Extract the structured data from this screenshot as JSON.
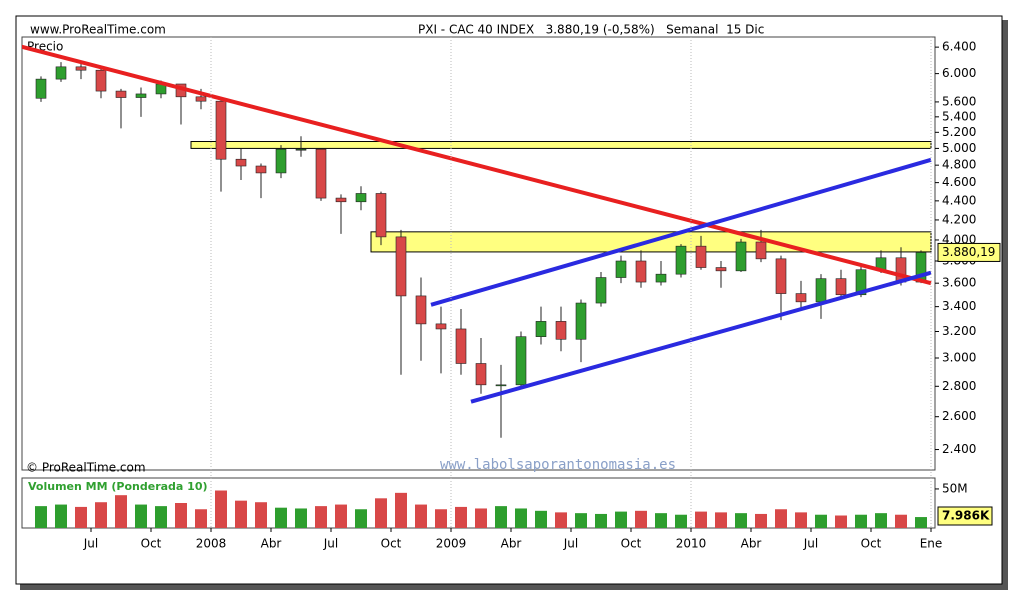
{
  "chart_data": {
    "type": "candlestick",
    "site": "www.ProRealTime.com",
    "title": "PXI - CAC 40 INDEX   3.880,19 (-0,58%)   Semanal  15 Dic",
    "price_label": "Precio",
    "copyright": "© ProRealTime.com",
    "watermark": "www.labolsaporantonomasia.es",
    "volume_title": "Volumen MM (Ponderada 10)",
    "x": [
      "2007-04",
      "2007-05",
      "2007-06",
      "2007-07",
      "2007-08",
      "2007-09",
      "2007-10",
      "2007-11",
      "2007-12",
      "2008-01",
      "2008-02",
      "2008-03",
      "2008-04",
      "2008-05",
      "2008-06",
      "2008-07",
      "2008-08",
      "2008-09",
      "2008-10",
      "2008-11",
      "2008-12",
      "2009-01",
      "2009-02",
      "2009-03",
      "2009-04",
      "2009-05",
      "2009-06",
      "2009-07",
      "2009-08",
      "2009-09",
      "2009-10",
      "2009-11",
      "2009-12",
      "2010-01",
      "2010-02",
      "2010-03",
      "2010-04",
      "2010-05",
      "2010-06",
      "2010-07",
      "2010-08",
      "2010-09",
      "2010-10",
      "2010-11",
      "2010-12"
    ],
    "open": [
      5650,
      5920,
      6100,
      6050,
      5750,
      5660,
      5710,
      5850,
      5670,
      5610,
      4870,
      4790,
      4710,
      4990,
      4990,
      4430,
      4390,
      4480,
      4030,
      3490,
      3260,
      3220,
      2960,
      2810,
      2810,
      3160,
      3280,
      3140,
      3430,
      3650,
      3800,
      3610,
      3680,
      3940,
      3740,
      3710,
      3980,
      3820,
      3510,
      3440,
      3640,
      3500,
      3720,
      3830,
      3610
    ],
    "high": [
      5960,
      6170,
      6160,
      6100,
      5780,
      5800,
      5900,
      5850,
      5780,
      5620,
      5000,
      4820,
      5040,
      5150,
      5000,
      4470,
      4560,
      4500,
      4100,
      3650,
      3400,
      3380,
      3150,
      2950,
      3200,
      3400,
      3400,
      3460,
      3700,
      3850,
      3900,
      3800,
      3960,
      4040,
      3800,
      4010,
      4100,
      3850,
      3620,
      3680,
      3720,
      3760,
      3900,
      3930,
      3900
    ],
    "low": [
      5600,
      5880,
      5920,
      5650,
      5250,
      5400,
      5650,
      5300,
      5500,
      4500,
      4630,
      4430,
      4650,
      4900,
      4400,
      4060,
      4300,
      3950,
      2880,
      2980,
      2890,
      2880,
      2750,
      2470,
      2800,
      3100,
      3050,
      2970,
      3400,
      3600,
      3560,
      3580,
      3650,
      3720,
      3560,
      3700,
      3790,
      3290,
      3390,
      3300,
      3460,
      3480,
      3690,
      3580,
      3600
    ],
    "close": [
      5920,
      6100,
      6050,
      5750,
      5660,
      5710,
      5850,
      5670,
      5610,
      4870,
      4790,
      4710,
      4990,
      4990,
      4430,
      4390,
      4480,
      4030,
      3490,
      3260,
      3220,
      2960,
      2810,
      2810,
      3160,
      3280,
      3140,
      3430,
      3650,
      3800,
      3610,
      3680,
      3940,
      3740,
      3710,
      3980,
      3820,
      3510,
      3440,
      3640,
      3500,
      3720,
      3830,
      3610,
      3880.19
    ],
    "last_close_label": "3.880,19",
    "up_color": "#2e9e2e",
    "down_color": "#d84848",
    "log_scale": true,
    "ylim": [
      2300,
      6560
    ],
    "yticks": [
      {
        "value": 6400,
        "label": "6.400"
      },
      {
        "value": 6000,
        "label": "6.000"
      },
      {
        "value": 5600,
        "label": "5.600"
      },
      {
        "value": 5400,
        "label": "5.400"
      },
      {
        "value": 5200,
        "label": "5.200"
      },
      {
        "value": 5000,
        "label": "5.000"
      },
      {
        "value": 4800,
        "label": "4.800"
      },
      {
        "value": 4600,
        "label": "4.600"
      },
      {
        "value": 4400,
        "label": "4.400"
      },
      {
        "value": 4200,
        "label": "4.200"
      },
      {
        "value": 4000,
        "label": "4.000"
      },
      {
        "value": 3800,
        "label": "3.800"
      },
      {
        "value": 3600,
        "label": "3.600"
      },
      {
        "value": 3400,
        "label": "3.400"
      },
      {
        "value": 3200,
        "label": "3.200"
      },
      {
        "value": 3000,
        "label": "3.000"
      },
      {
        "value": 2800,
        "label": "2.800"
      },
      {
        "value": 2600,
        "label": "2.600"
      },
      {
        "value": 2400,
        "label": "2.400"
      }
    ],
    "xticks": [
      {
        "value": "2007-07",
        "label": "Jul"
      },
      {
        "value": "2007-10",
        "label": "Oct"
      },
      {
        "value": "2008-01",
        "label": "2008"
      },
      {
        "value": "2008-04",
        "label": "Abr"
      },
      {
        "value": "2008-07",
        "label": "Jul"
      },
      {
        "value": "2008-10",
        "label": "Oct"
      },
      {
        "value": "2009-01",
        "label": "2009"
      },
      {
        "value": "2009-04",
        "label": "Abr"
      },
      {
        "value": "2009-07",
        "label": "Jul"
      },
      {
        "value": "2009-10",
        "label": "Oct"
      },
      {
        "value": "2010-01",
        "label": "2010"
      },
      {
        "value": "2010-04",
        "label": "Abr"
      },
      {
        "value": "2010-07",
        "label": "Jul"
      },
      {
        "value": "2010-10",
        "label": "Oct"
      },
      {
        "value": "2011-01",
        "label": "Ene"
      }
    ],
    "zones": [
      {
        "color": "#ffff80",
        "from": "2007-12",
        "to": "2011-01",
        "range": [
          5000,
          5085
        ]
      },
      {
        "color": "#ffff80",
        "from": "2008-09",
        "to": "2011-01",
        "range": [
          3885,
          4080
        ]
      }
    ],
    "trendlines": [
      {
        "color": "#e82020",
        "points": [
          [
            "2007-03",
            6450
          ],
          [
            "2011-01",
            3600
          ]
        ]
      },
      {
        "color": "#2a2ae0",
        "points": [
          [
            "2008-12",
            3415
          ],
          [
            "2011-01",
            4863
          ]
        ]
      },
      {
        "color": "#2a2ae0",
        "points": [
          [
            "2009-02",
            2697
          ],
          [
            "2011-01",
            3693
          ]
        ]
      }
    ],
    "volume": [
      28,
      30,
      27,
      33,
      42,
      30,
      28,
      32,
      24,
      48,
      35,
      33,
      26,
      25,
      28,
      30,
      24,
      38,
      45,
      30,
      24,
      27,
      25,
      28,
      25,
      22,
      20,
      19,
      18,
      21,
      22,
      19,
      17,
      21,
      20,
      19,
      18,
      24,
      20,
      17,
      16,
      17,
      19,
      17,
      14
    ],
    "volume_ylim": [
      0,
      64
    ],
    "volume_yticks": [
      {
        "value": 50,
        "label": "50M"
      }
    ],
    "last_volume_label": "7.986K"
  }
}
